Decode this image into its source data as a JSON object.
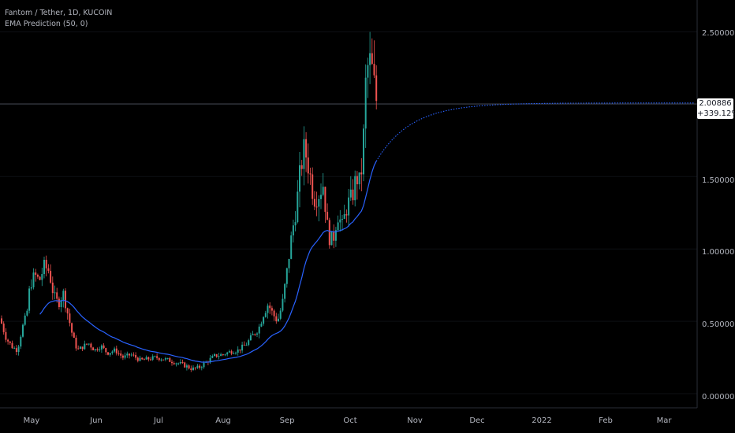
{
  "legend": {
    "symbol": "Fantom / Tether, 1D, KUCOIN",
    "indicator": "EMA Prediction (50, 0)"
  },
  "price_badge": {
    "price": "2.00886",
    "change": "+339.12%"
  },
  "colors": {
    "background": "#000000",
    "up": "#26a69a",
    "down": "#ef5350",
    "ema": "#2962ff",
    "axis_text": "#b2b5be",
    "grid": "#1c1f26"
  },
  "chart_data": {
    "type": "candlestick",
    "y_axis": {
      "ticks": [
        "2.50000",
        "1.50000",
        "1.00000",
        "0.50000",
        "0.00000"
      ],
      "values": [
        2.5,
        1.5,
        1.0,
        0.5,
        0.0
      ],
      "ylim": [
        -0.08,
        2.72
      ]
    },
    "x_axis": {
      "ticks": [
        "May",
        "Jun",
        "Jul",
        "Aug",
        "Sep",
        "Oct",
        "Nov",
        "Dec",
        "2022",
        "Feb",
        "Mar"
      ]
    },
    "current_price": 2.00886,
    "series": [
      {
        "name": "EMA Prediction (50, 0)",
        "kind": "ema"
      }
    ],
    "candles_monthly_summary": [
      {
        "month": "May",
        "range": [
          0.25,
          0.96
        ]
      },
      {
        "month": "Jun",
        "range": [
          0.18,
          0.55
        ]
      },
      {
        "month": "Jul",
        "range": [
          0.14,
          0.3
        ]
      },
      {
        "month": "Aug",
        "range": [
          0.22,
          0.9
        ]
      },
      {
        "month": "Sep",
        "range": [
          0.85,
          1.88
        ]
      },
      {
        "month": "Oct",
        "range": [
          0.95,
          2.47
        ]
      }
    ]
  }
}
